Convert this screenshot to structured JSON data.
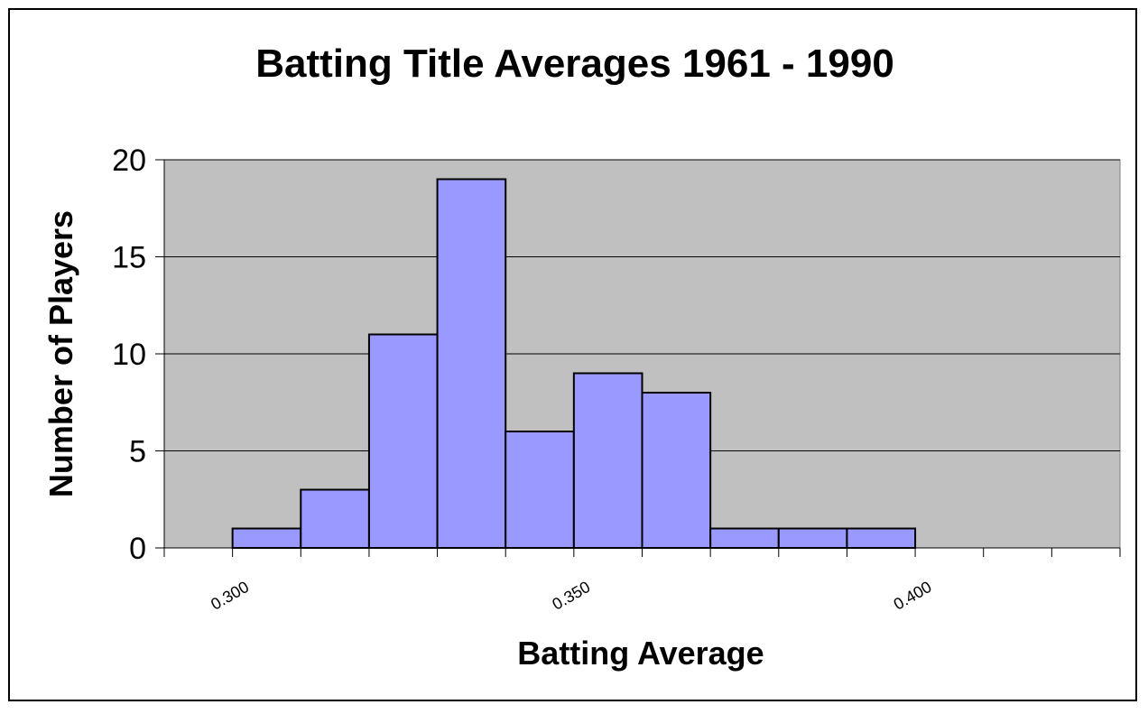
{
  "chart_data": {
    "type": "bar",
    "title": "Batting Title Averages 1961 - 1990",
    "xlabel": "Batting Average",
    "ylabel": "Number of Players",
    "bins": [
      {
        "start": 0.3,
        "end": 0.31,
        "count": 1
      },
      {
        "start": 0.31,
        "end": 0.32,
        "count": 3
      },
      {
        "start": 0.32,
        "end": 0.33,
        "count": 11
      },
      {
        "start": 0.33,
        "end": 0.34,
        "count": 19
      },
      {
        "start": 0.34,
        "end": 0.35,
        "count": 6
      },
      {
        "start": 0.35,
        "end": 0.36,
        "count": 9
      },
      {
        "start": 0.36,
        "end": 0.37,
        "count": 8
      },
      {
        "start": 0.37,
        "end": 0.38,
        "count": 1
      },
      {
        "start": 0.38,
        "end": 0.39,
        "count": 1
      },
      {
        "start": 0.39,
        "end": 0.4,
        "count": 1
      }
    ],
    "xlim": [
      0.29,
      0.43
    ],
    "ylim": [
      0,
      20
    ],
    "y_ticks": [
      "0",
      "5",
      "10",
      "15",
      "20"
    ],
    "x_ticks": [
      {
        "value": 0.3,
        "label": "0.300"
      },
      {
        "value": 0.35,
        "label": "0.350"
      },
      {
        "value": 0.4,
        "label": "0.400"
      }
    ],
    "x_minor_tick_step": 0.01,
    "grid": "horizontal",
    "legend": "none",
    "colors": {
      "bar_fill": "#9999ff",
      "bar_edge": "#000000",
      "plot_background": "#c0c0c0",
      "background": "#ffffff"
    }
  }
}
